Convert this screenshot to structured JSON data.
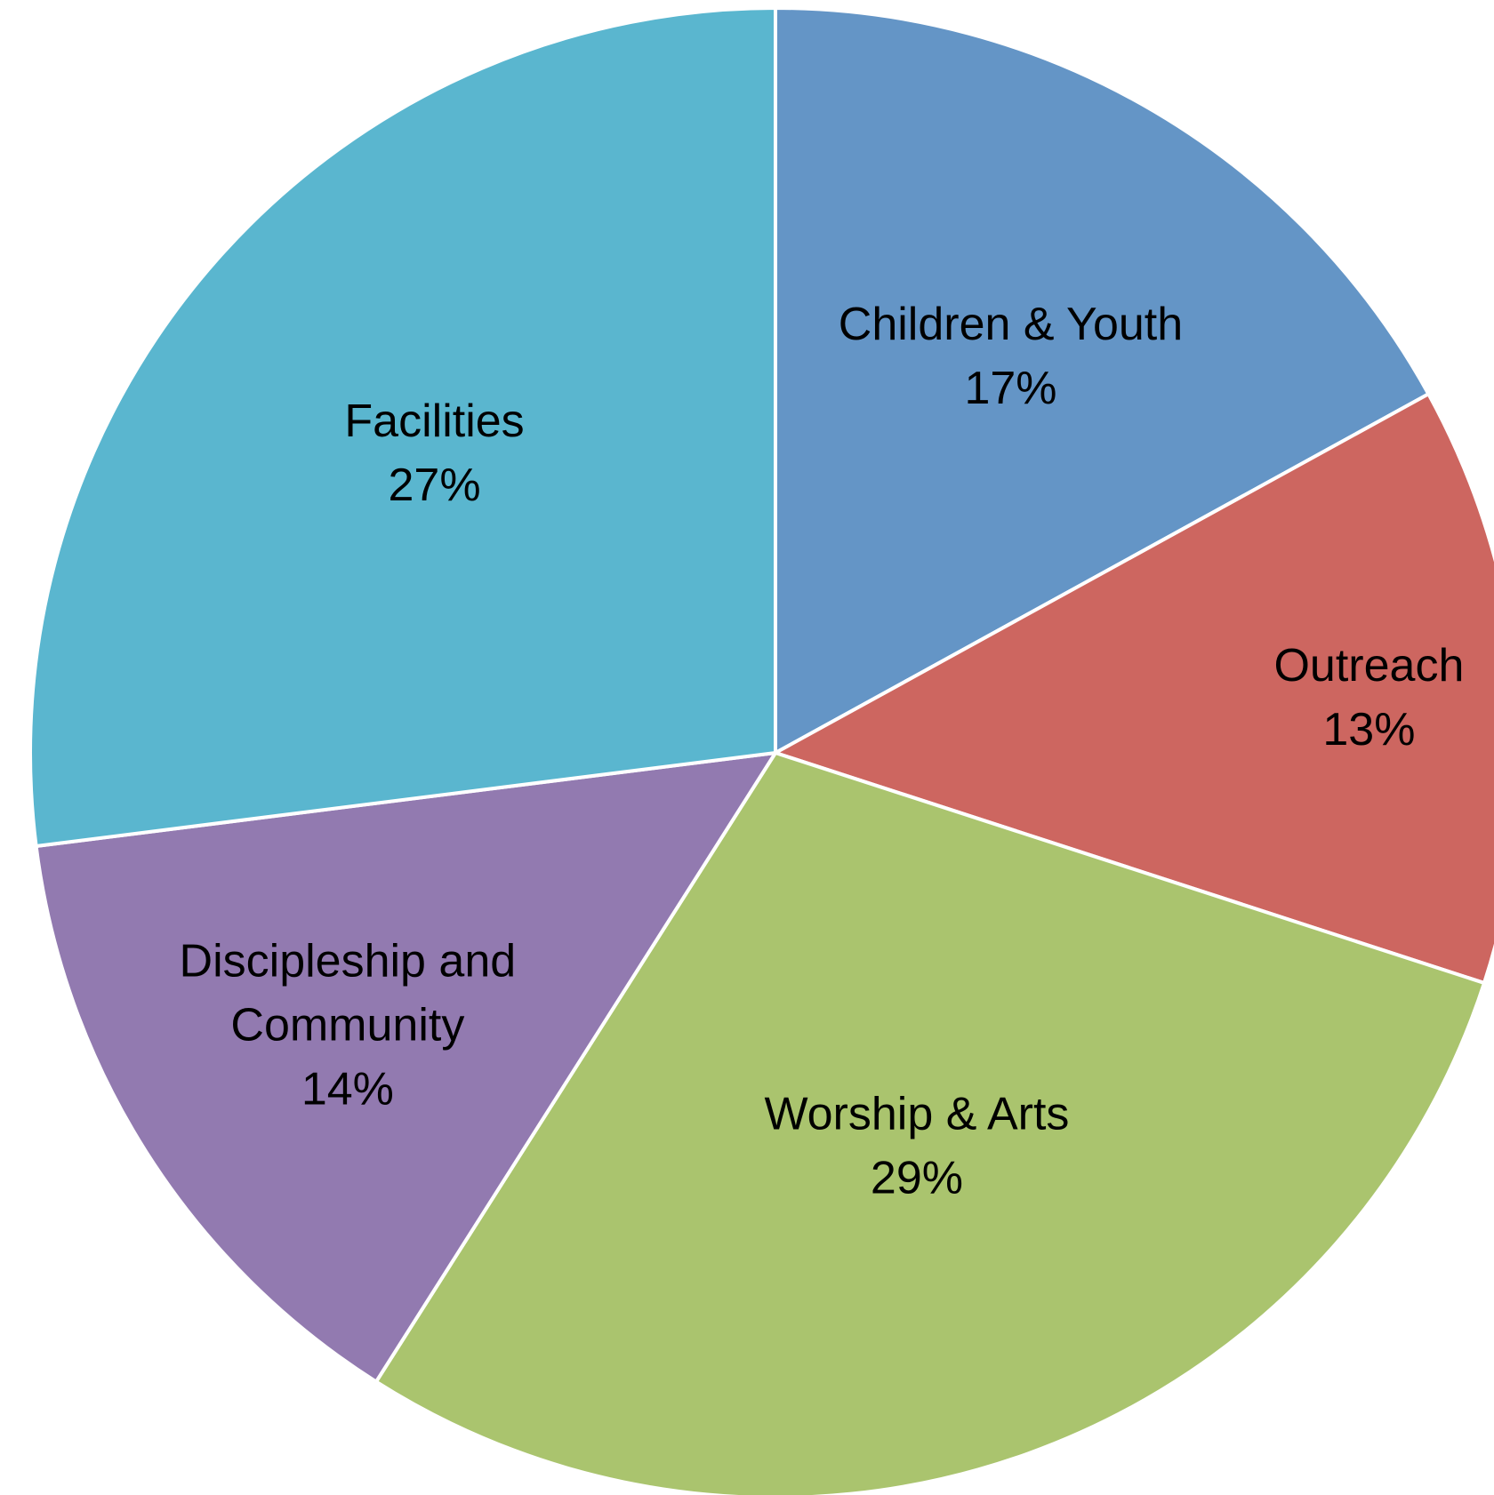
{
  "chart_data": {
    "type": "pie",
    "title": "",
    "start_angle_deg": 0,
    "direction": "clockwise",
    "slices": [
      {
        "label": "Children & Youth",
        "value": 17,
        "value_label": "17%",
        "color": "#6495c6"
      },
      {
        "label": "Outreach",
        "value": 13,
        "value_label": "13%",
        "color": "#cd6660"
      },
      {
        "label": "Worship & Arts",
        "value": 29,
        "value_label": "29%",
        "color": "#aac46e"
      },
      {
        "label": "Discipleship and Community",
        "value": 14,
        "value_label": "14%",
        "color": "#927ab0"
      },
      {
        "label": "Facilities",
        "value": 27,
        "value_label": "27%",
        "color": "#5ab6cf"
      }
    ],
    "legend": "none"
  }
}
